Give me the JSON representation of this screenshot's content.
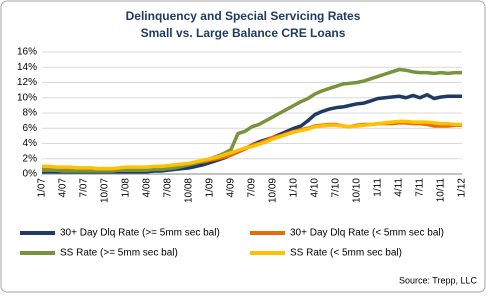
{
  "chart_data": {
    "type": "line",
    "title": "Delinquency and Special Servicing Rates",
    "subtitle": "Small vs. Large Balance  CRE Loans",
    "source": "Source:  Trepp, LLC",
    "categories": [
      "1/07",
      null,
      null,
      "4/07",
      null,
      null,
      "7/07",
      null,
      null,
      "10/07",
      null,
      null,
      "1/08",
      null,
      null,
      "4/08",
      null,
      null,
      "7/08",
      null,
      null,
      "10/08",
      null,
      null,
      "1/09",
      null,
      null,
      "4/09",
      null,
      null,
      "7/09",
      null,
      null,
      "10/09",
      null,
      null,
      "1/10",
      null,
      null,
      "4/10",
      null,
      null,
      "7/10",
      null,
      null,
      "10/10",
      null,
      null,
      "1/11",
      null,
      null,
      "4/11",
      null,
      null,
      "7/11",
      null,
      null,
      "10/11",
      null,
      null,
      "1/12"
    ],
    "series": [
      {
        "name": "30+ Day Dlq Rate (>= 5mm sec bal)",
        "color": "#1f3b63",
        "values": [
          0.3,
          0.3,
          0.3,
          0.3,
          0.3,
          0.3,
          0.3,
          0.3,
          0.3,
          0.3,
          0.3,
          0.3,
          0.3,
          0.3,
          0.3,
          0.3,
          0.4,
          0.4,
          0.5,
          0.6,
          0.7,
          0.8,
          1.0,
          1.2,
          1.5,
          1.8,
          2.1,
          2.5,
          2.9,
          3.3,
          3.8,
          4.2,
          4.5,
          4.8,
          5.2,
          5.6,
          6.0,
          6.3,
          7.0,
          7.8,
          8.2,
          8.5,
          8.7,
          8.8,
          9.0,
          9.2,
          9.3,
          9.6,
          9.9,
          10.0,
          10.1,
          10.2,
          10.0,
          10.3,
          10.0,
          10.4,
          9.9,
          10.1,
          10.2,
          10.2,
          10.2
        ]
      },
      {
        "name": "30+ Day Dlq Rate (< 5mm sec bal)",
        "color": "#e46c0a",
        "values": [
          0.9,
          0.9,
          0.8,
          0.8,
          0.8,
          0.7,
          0.7,
          0.7,
          0.6,
          0.6,
          0.6,
          0.7,
          0.8,
          0.8,
          0.8,
          0.8,
          0.9,
          0.9,
          1.0,
          1.1,
          1.2,
          1.3,
          1.5,
          1.6,
          1.8,
          2.0,
          2.2,
          2.5,
          2.9,
          3.3,
          3.8,
          4.0,
          4.4,
          4.8,
          5.0,
          5.3,
          5.6,
          5.8,
          6.0,
          6.3,
          6.4,
          6.5,
          6.5,
          6.3,
          6.2,
          6.4,
          6.5,
          6.5,
          6.6,
          6.6,
          6.6,
          6.7,
          6.7,
          6.6,
          6.6,
          6.5,
          6.3,
          6.3,
          6.3,
          6.4,
          6.4
        ]
      },
      {
        "name": "SS Rate (>= 5mm sec bal)",
        "color": "#77933c",
        "values": [
          0.5,
          0.5,
          0.5,
          0.4,
          0.4,
          0.4,
          0.4,
          0.4,
          0.4,
          0.4,
          0.4,
          0.5,
          0.5,
          0.5,
          0.5,
          0.5,
          0.6,
          0.6,
          0.7,
          0.8,
          1.0,
          1.2,
          1.4,
          1.7,
          2.0,
          2.3,
          2.7,
          3.2,
          5.3,
          5.6,
          6.2,
          6.5,
          7.0,
          7.5,
          8.0,
          8.5,
          9.0,
          9.5,
          9.9,
          10.5,
          10.9,
          11.2,
          11.5,
          11.8,
          11.9,
          12.0,
          12.2,
          12.5,
          12.8,
          13.1,
          13.4,
          13.7,
          13.6,
          13.4,
          13.3,
          13.3,
          13.2,
          13.3,
          13.2,
          13.3,
          13.3
        ]
      },
      {
        "name": "SS Rate (< 5mm sec bal)",
        "color": "#ffc000",
        "values": [
          1.0,
          1.0,
          0.9,
          0.9,
          0.9,
          0.8,
          0.8,
          0.8,
          0.7,
          0.7,
          0.7,
          0.8,
          0.9,
          0.9,
          0.9,
          0.9,
          1.0,
          1.0,
          1.1,
          1.2,
          1.3,
          1.4,
          1.6,
          1.8,
          2.0,
          2.2,
          2.5,
          2.8,
          3.1,
          3.4,
          3.6,
          3.9,
          4.2,
          4.6,
          4.9,
          5.2,
          5.5,
          5.7,
          5.9,
          6.2,
          6.3,
          6.4,
          6.4,
          6.3,
          6.2,
          6.3,
          6.4,
          6.5,
          6.6,
          6.7,
          6.8,
          6.9,
          6.9,
          6.8,
          6.8,
          6.8,
          6.7,
          6.6,
          6.6,
          6.5,
          6.5
        ]
      }
    ],
    "ylim": [
      0,
      16
    ],
    "yticks": [
      {
        "value": 0,
        "label": "0%"
      },
      {
        "value": 2,
        "label": "2%"
      },
      {
        "value": 4,
        "label": "4%"
      },
      {
        "value": 6,
        "label": "6%"
      },
      {
        "value": 8,
        "label": "8%"
      },
      {
        "value": 10,
        "label": "10%"
      },
      {
        "value": 12,
        "label": "12%"
      },
      {
        "value": 14,
        "label": "14%"
      },
      {
        "value": 16,
        "label": "16%"
      }
    ],
    "grid": true
  }
}
